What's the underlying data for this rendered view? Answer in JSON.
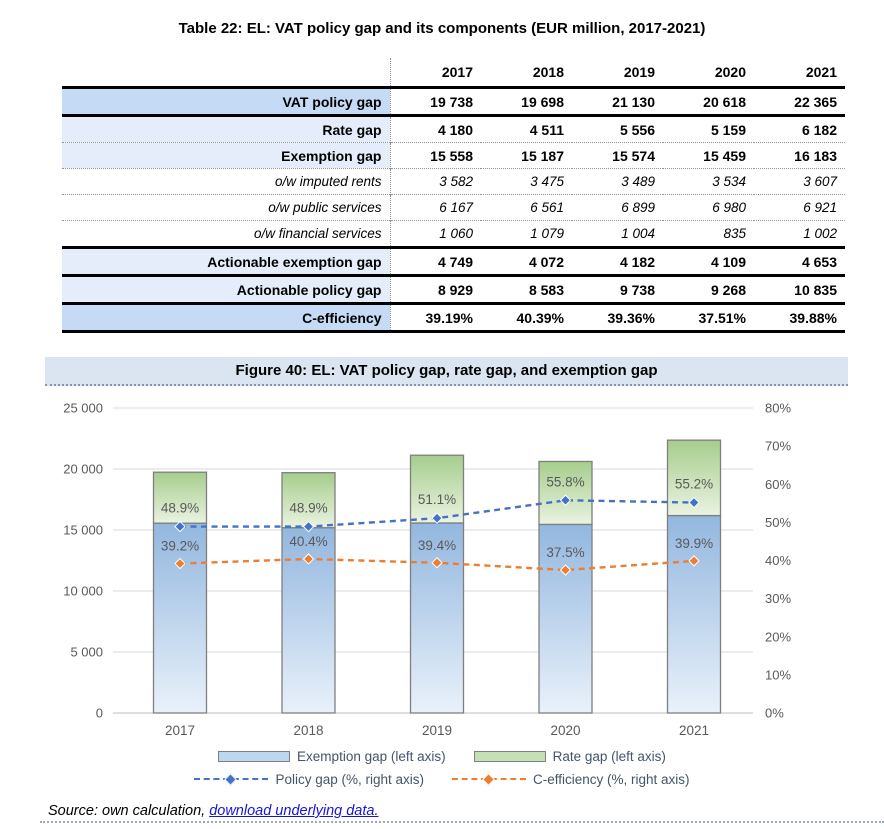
{
  "table": {
    "title": "Table 22: EL: VAT policy gap and its components (EUR million, 2017-2021)",
    "col_headers": [
      "2017",
      "2018",
      "2019",
      "2020",
      "2021"
    ],
    "rows": [
      {
        "label": "VAT policy gap",
        "values": [
          "19 738",
          "19 698",
          "21 130",
          "20 618",
          "22 365"
        ],
        "style": "bold-dark"
      },
      {
        "label": "Rate gap",
        "values": [
          "4 180",
          "4 511",
          "5 556",
          "5 159",
          "6 182"
        ],
        "style": "bold"
      },
      {
        "label": "Exemption gap",
        "values": [
          "15 558",
          "15 187",
          "15 574",
          "15 459",
          "16 183"
        ],
        "style": "bold"
      },
      {
        "label": "o/w imputed rents",
        "values": [
          "3 582",
          "3 475",
          "3 489",
          "3 534",
          "3 607"
        ],
        "style": "italic"
      },
      {
        "label": "o/w public services",
        "values": [
          "6 167",
          "6 561",
          "6 899",
          "6 980",
          "6 921"
        ],
        "style": "italic"
      },
      {
        "label": "o/w financial services",
        "values": [
          "1 060",
          "1 079",
          "1 004",
          "835",
          "1 002"
        ],
        "style": "italic"
      },
      {
        "label": "Actionable exemption gap",
        "values": [
          "4 749",
          "4 072",
          "4 182",
          "4 109",
          "4 653"
        ],
        "style": "bold"
      },
      {
        "label": "Actionable policy gap",
        "values": [
          "8 929",
          "8 583",
          "9 738",
          "9 268",
          "10 835"
        ],
        "style": "bold"
      },
      {
        "label": "C-efficiency",
        "values": [
          "39.19%",
          "40.39%",
          "39.36%",
          "37.51%",
          "39.88%"
        ],
        "style": "bold-dark"
      }
    ]
  },
  "figure": {
    "title": "Figure 40: EL: VAT policy gap, rate gap, and exemption gap"
  },
  "chart_data": {
    "type": "bar",
    "subtype": "stacked-bars-with-percent-lines",
    "title": "Figure 40: EL: VAT policy gap, rate gap, and exemption gap",
    "categories": [
      "2017",
      "2018",
      "2019",
      "2020",
      "2021"
    ],
    "series": [
      {
        "name": "Exemption gap (left axis)",
        "type": "bar",
        "axis": "left",
        "color": "#bdd7ee",
        "gradient": [
          "#93b7df",
          "#e9f1fa"
        ],
        "values": [
          15558,
          15187,
          15574,
          15459,
          16183
        ]
      },
      {
        "name": "Rate gap (left axis)",
        "type": "bar",
        "axis": "left",
        "color": "#c5e0b4",
        "gradient": [
          "#a6cd8d",
          "#eaf3e1"
        ],
        "values": [
          4180,
          4511,
          5556,
          5159,
          6182
        ]
      },
      {
        "name": "Policy gap (%, right axis)",
        "type": "line",
        "axis": "right",
        "color": "#4472c4",
        "values": [
          48.9,
          48.9,
          51.1,
          55.8,
          55.2
        ],
        "point_labels": [
          "48.9%",
          "48.9%",
          "51.1%",
          "55.8%",
          "55.2%"
        ]
      },
      {
        "name": "C-efficiency (%, right axis)",
        "type": "line",
        "axis": "right",
        "color": "#ed7d31",
        "values": [
          39.2,
          40.4,
          39.4,
          37.5,
          39.9
        ],
        "point_labels": [
          "39.2%",
          "40.4%",
          "39.4%",
          "37.5%",
          "39.9%"
        ]
      }
    ],
    "left_axis": {
      "min": 0,
      "max": 25000,
      "step": 5000,
      "tick_labels": [
        "25 000",
        "20 000",
        "15 000",
        "10 000",
        "5 000",
        "0"
      ]
    },
    "right_axis": {
      "min": 0,
      "max": 80,
      "step": 10,
      "tick_labels": [
        "80%",
        "70%",
        "60%",
        "50%",
        "40%",
        "30%",
        "20%",
        "10%",
        "0%"
      ]
    },
    "grid": "horizontal",
    "legend_position": "bottom",
    "stacked": true
  },
  "source": {
    "prefix": "Source: own calculation, ",
    "link_text": "download underlying data."
  }
}
